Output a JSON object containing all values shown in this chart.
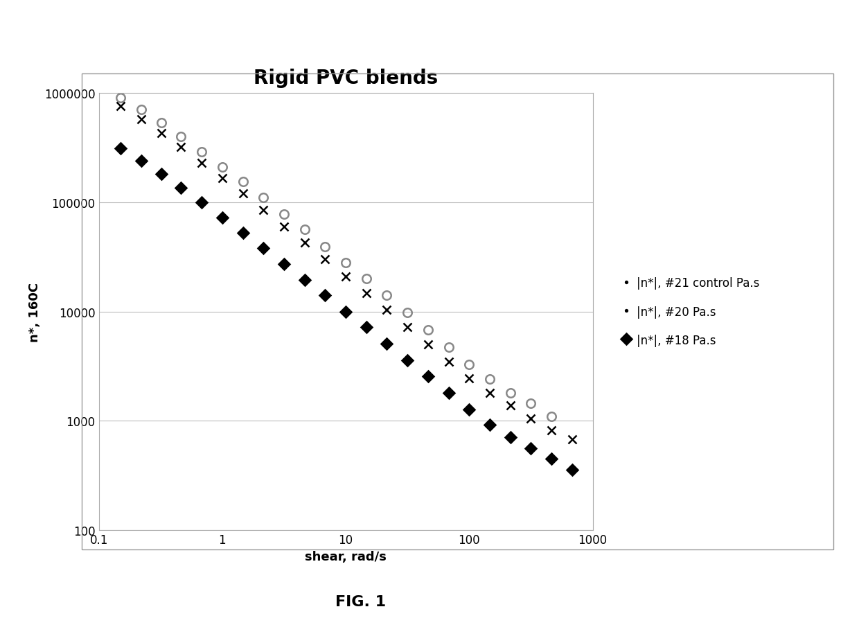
{
  "title": "Rigid PVC blends",
  "xlabel": "shear, rad/s",
  "ylabel": "n*, 160C",
  "fig_caption": "FIG. 1",
  "xlim": [
    0.1,
    1000
  ],
  "ylim": [
    100,
    1000000
  ],
  "series": [
    {
      "label": "|n*|, #21 control Pa.s",
      "marker": "o",
      "color": "#888888",
      "facecolor": "none",
      "markersize": 9,
      "x": [
        0.15,
        0.22,
        0.32,
        0.46,
        0.68,
        1.0,
        1.47,
        2.15,
        3.16,
        4.64,
        6.81,
        10.0,
        14.7,
        21.5,
        31.6,
        46.4,
        68.1,
        100,
        147,
        215,
        316,
        464
      ],
      "y": [
        900000,
        700000,
        530000,
        400000,
        290000,
        210000,
        155000,
        110000,
        78000,
        56000,
        39000,
        28000,
        20000,
        14000,
        9800,
        6800,
        4700,
        3300,
        2400,
        1800,
        1450,
        1100
      ]
    },
    {
      "label": "|n*|, #20 Pa.s",
      "marker": "x",
      "color": "black",
      "facecolor": "black",
      "markersize": 9,
      "x": [
        0.15,
        0.22,
        0.32,
        0.46,
        0.68,
        1.0,
        1.47,
        2.15,
        3.16,
        4.64,
        6.81,
        10.0,
        14.7,
        21.5,
        31.6,
        46.4,
        68.1,
        100,
        147,
        215,
        316,
        464,
        681
      ],
      "y": [
        750000,
        575000,
        430000,
        320000,
        230000,
        165000,
        120000,
        85000,
        60000,
        43000,
        30000,
        21000,
        14800,
        10400,
        7200,
        5000,
        3500,
        2450,
        1800,
        1380,
        1050,
        820,
        680
      ]
    },
    {
      "label": "|n*|, #18 Pa.s",
      "marker": "D",
      "color": "black",
      "facecolor": "black",
      "markersize": 8,
      "x": [
        0.15,
        0.22,
        0.32,
        0.46,
        0.68,
        1.0,
        1.47,
        2.15,
        3.16,
        4.64,
        6.81,
        10.0,
        14.7,
        21.5,
        31.6,
        46.4,
        68.1,
        100,
        147,
        215,
        316,
        464,
        681
      ],
      "y": [
        310000,
        240000,
        180000,
        135000,
        99000,
        72000,
        52000,
        38000,
        27000,
        19500,
        14000,
        10000,
        7200,
        5100,
        3600,
        2550,
        1800,
        1280,
        920,
        710,
        560,
        450,
        360
      ]
    }
  ],
  "background_color": "#ffffff",
  "grid_color": "#bbbbbb",
  "title_fontsize": 20,
  "label_fontsize": 13,
  "tick_fontsize": 12,
  "legend_fontsize": 12
}
